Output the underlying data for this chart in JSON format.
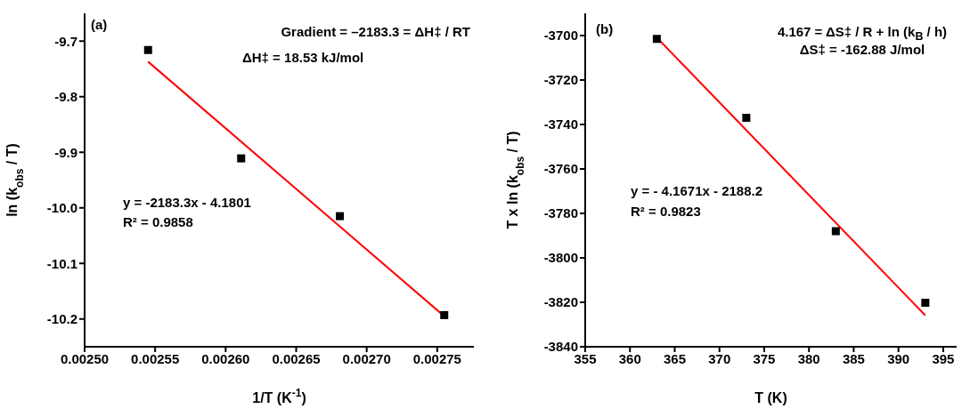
{
  "chart_data": [
    {
      "type": "scatter",
      "xlabel": "1/T (K$^{-1}$)",
      "ylabel": "ln (k$_{obs}$ / T)",
      "xlim": [
        0.0025,
        0.002776
      ],
      "xticks": [
        {
          "value": 0.0025,
          "label": "0.00250"
        },
        0.00255,
        {
          "value": 0.0026,
          "label": "0.00260"
        },
        0.00265,
        {
          "value": 0.0027,
          "label": "0.00270"
        },
        0.00275
      ],
      "ylim": [
        -10.25,
        -9.65
      ],
      "yticks": [
        -9.7,
        -9.8,
        -9.9,
        {
          "value": -10.0,
          "label": "-10.0"
        },
        -10.1,
        -10.2
      ],
      "x": [
        0.002545,
        0.002611,
        0.002681,
        0.002755
      ],
      "series": [
        {
          "marker": "square",
          "color": "#000000",
          "values": [
            -9.716,
            -9.911,
            -10.015,
            -10.193
          ]
        },
        {
          "type": "line",
          "color": "#ff0000",
          "x": [
            0.002545,
            0.002755
          ],
          "values": [
            -9.737,
            -10.195
          ]
        }
      ],
      "annotations": [
        "(a)",
        "Gradient = –2183.3 = ΔH‡ / RT",
        "ΔH‡ = 18.53 kJ/mol",
        "y = -2183.3x - 4.1801",
        "R² = 0.9858"
      ]
    },
    {
      "type": "scatter",
      "xlabel": "T (K)",
      "ylabel": "T x ln (k$_{obs}$ / T)",
      "xlim": [
        355,
        396.5
      ],
      "xticks": [
        355,
        360,
        365,
        370,
        375,
        380,
        385,
        390,
        395
      ],
      "ylim": [
        -3840,
        -3690
      ],
      "yticks": [
        -3700,
        -3720,
        -3740,
        -3760,
        -3780,
        -3800,
        -3820,
        -3840
      ],
      "x": [
        363,
        373,
        383,
        393
      ],
      "series": [
        {
          "marker": "square",
          "color": "#000000",
          "values": [
            -3701.5,
            -3737,
            -3788,
            -3820.2
          ]
        },
        {
          "type": "line",
          "color": "#ff0000",
          "x": [
            363,
            393
          ],
          "values": [
            -3700.9,
            -3825.9
          ]
        }
      ],
      "annotations": [
        "(b)",
        "4.167 = ΔS‡ / R + ln (k$_{B}$ / h)",
        "ΔS‡ = -162.88 J/mol",
        "y = - 4.1671x - 2188.2",
        "R² = 0.9823"
      ]
    }
  ]
}
